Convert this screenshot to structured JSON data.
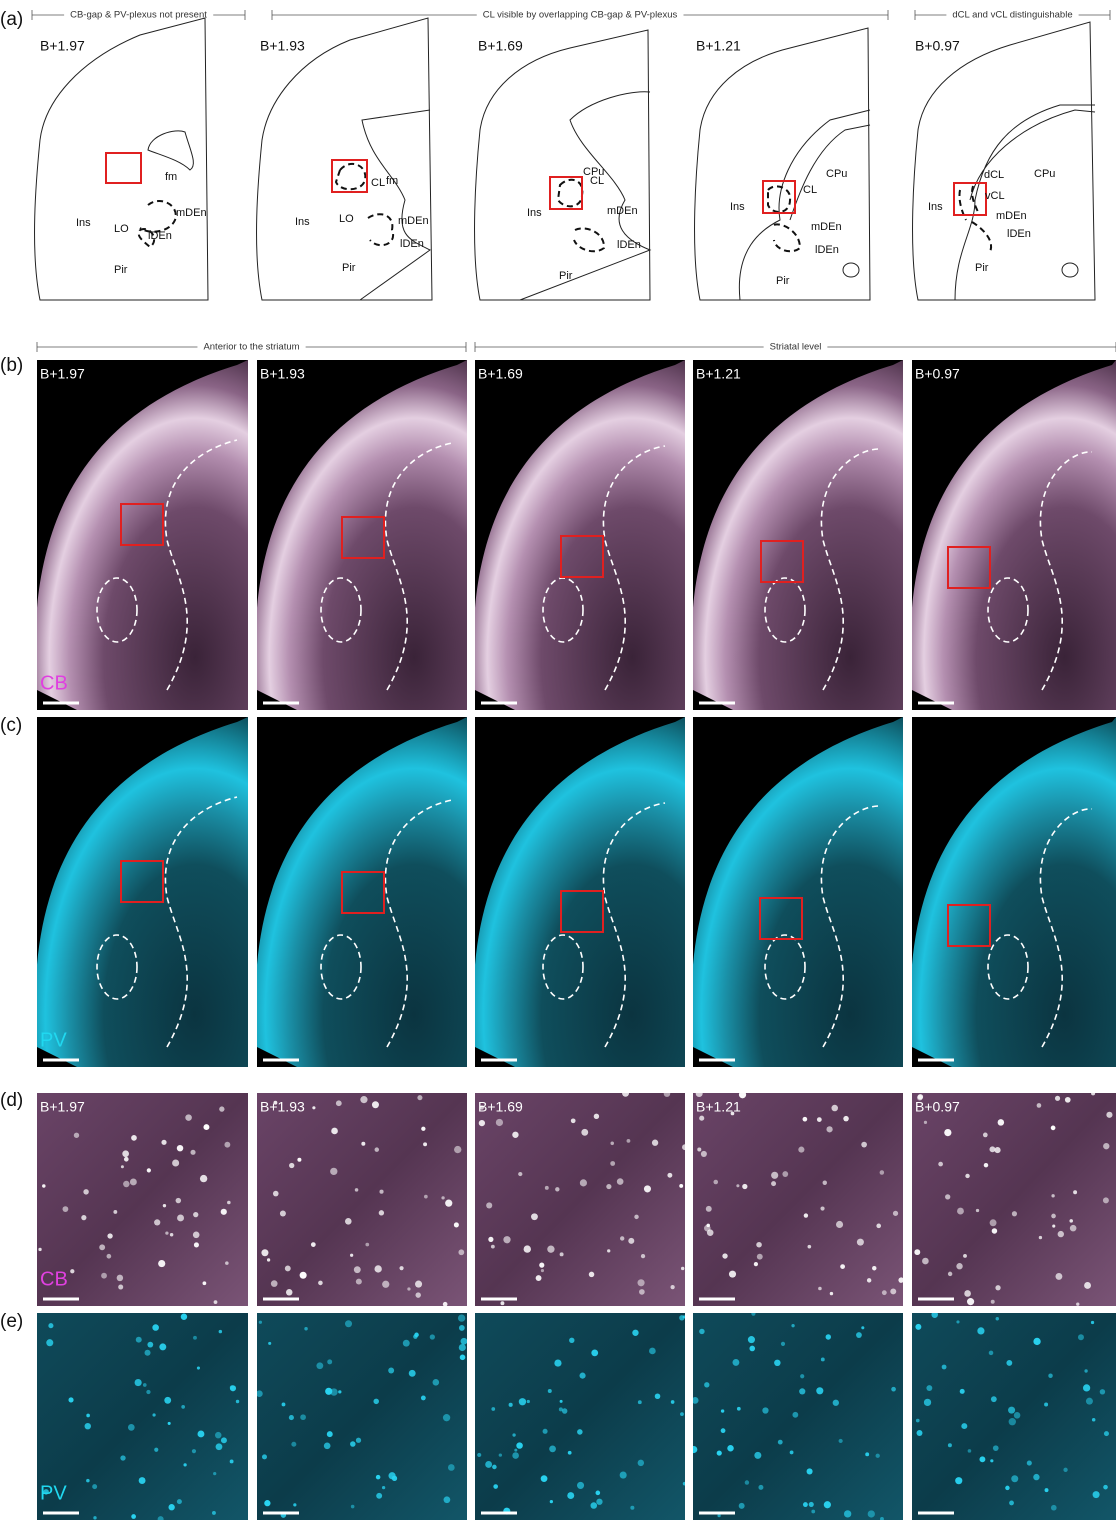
{
  "panel_a": {
    "label": "(a)",
    "brackets": [
      "CB-gap & PV-plexus not present",
      "CL visible by overlapping CB-gap & PV-plexus",
      "dCL and vCL distinguishable"
    ],
    "sections": [
      {
        "level": "B+1.97",
        "regions": [
          "fm",
          "Ins",
          "LO",
          "mDEn",
          "lDEn",
          "Pir"
        ]
      },
      {
        "level": "B+1.93",
        "regions": [
          "fm",
          "CL",
          "Ins",
          "LO",
          "mDEn",
          "lDEn",
          "Pir"
        ]
      },
      {
        "level": "B+1.69",
        "regions": [
          "CPu",
          "CL",
          "Ins",
          "mDEn",
          "lDEn",
          "Pir"
        ]
      },
      {
        "level": "B+1.21",
        "regions": [
          "CPu",
          "CL",
          "Ins",
          "mDEn",
          "lDEn",
          "Pir"
        ]
      },
      {
        "level": "B+0.97",
        "regions": [
          "dCL",
          "CPu",
          "vCL",
          "Ins",
          "mDEn",
          "lDEn",
          "Pir"
        ]
      }
    ]
  },
  "panel_b": {
    "label": "(b)",
    "brackets": [
      "Anterior to the striatum",
      "Striatal level"
    ],
    "levels": [
      "B+1.97",
      "B+1.93",
      "B+1.69",
      "B+1.21",
      "B+0.97"
    ],
    "stain": "CB"
  },
  "panel_c": {
    "label": "(c)",
    "stain": "PV"
  },
  "panel_d": {
    "label": "(d)",
    "levels": [
      "B+1.97",
      "B+1.93",
      "B+1.69",
      "B+1.21",
      "B+0.97"
    ],
    "stain": "CB"
  },
  "panel_e": {
    "label": "(e)",
    "stain": "PV"
  }
}
